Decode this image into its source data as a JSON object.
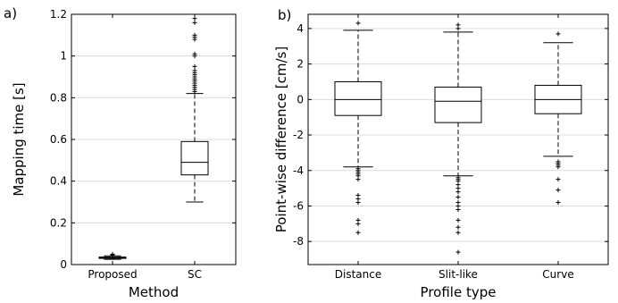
{
  "chart_data": [
    {
      "type": "box",
      "panel_label": "a)",
      "xlabel": "Method",
      "ylabel": "Mapping time [s]",
      "ylim": [
        0,
        1.2
      ],
      "yticks": [
        0,
        0.2,
        0.4,
        0.6,
        0.8,
        1,
        1.2
      ],
      "ytick_labels": [
        "0",
        "0.2",
        "0.4",
        "0.6",
        "0.8",
        "1",
        "1.2"
      ],
      "grid": "horizontal",
      "categories": [
        "Proposed",
        "SC"
      ],
      "boxes": [
        {
          "category": "Proposed",
          "whisker_low": 0.025,
          "q1": 0.03,
          "median": 0.033,
          "q3": 0.036,
          "whisker_high": 0.042,
          "outliers": [
            0.045,
            0.048,
            0.05
          ]
        },
        {
          "category": "SC",
          "whisker_low": 0.3,
          "q1": 0.43,
          "median": 0.49,
          "q3": 0.59,
          "whisker_high": 0.82,
          "outliers": [
            0.83,
            0.84,
            0.85,
            0.86,
            0.87,
            0.88,
            0.89,
            0.9,
            0.91,
            0.92,
            0.93,
            0.95,
            1.0,
            1.01,
            1.08,
            1.09,
            1.1,
            1.16,
            1.18
          ]
        }
      ]
    },
    {
      "type": "box",
      "panel_label": "b)",
      "xlabel": "Profile type",
      "ylabel": "Point-wise difference [cm/s]",
      "ylim": [
        -9.3,
        4.8
      ],
      "yticks": [
        -8,
        -6,
        -4,
        -2,
        0,
        2,
        4
      ],
      "ytick_labels": [
        "-8",
        "-6",
        "-4",
        "-2",
        "0",
        "2",
        "4"
      ],
      "grid": "horizontal",
      "categories": [
        "Distance",
        "Slit-like",
        "Curve"
      ],
      "boxes": [
        {
          "category": "Distance",
          "whisker_low": -3.8,
          "q1": -0.9,
          "median": 0.0,
          "q3": 1.0,
          "whisker_high": 3.9,
          "outliers": [
            4.3,
            -3.9,
            -4.0,
            -4.1,
            -4.2,
            -4.3,
            -4.5,
            -5.4,
            -5.6,
            -5.8,
            -6.8,
            -7.0,
            -7.5
          ]
        },
        {
          "category": "Slit-like",
          "whisker_low": -4.3,
          "q1": -1.3,
          "median": -0.1,
          "q3": 0.7,
          "whisker_high": 3.8,
          "outliers": [
            4.0,
            4.2,
            -4.4,
            -4.5,
            -4.6,
            -4.8,
            -5.0,
            -5.2,
            -5.5,
            -5.8,
            -6.0,
            -6.2,
            -6.8,
            -7.2,
            -7.5,
            -8.6
          ]
        },
        {
          "category": "Curve",
          "whisker_low": -3.2,
          "q1": -0.8,
          "median": 0.0,
          "q3": 0.8,
          "whisker_high": 3.2,
          "outliers": [
            3.7,
            -3.5,
            -3.6,
            -3.7,
            -3.8,
            -4.5,
            -5.1,
            -5.8
          ]
        }
      ]
    }
  ]
}
